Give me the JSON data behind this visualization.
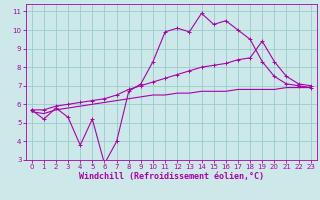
{
  "xlabel": "Windchill (Refroidissement éolien,°C)",
  "bg_color": "#cce8e8",
  "line_color": "#aa00aa",
  "grid_color": "#99cccc",
  "xlim": [
    -0.5,
    23.5
  ],
  "ylim": [
    3,
    11.4
  ],
  "xticks": [
    0,
    1,
    2,
    3,
    4,
    5,
    6,
    7,
    8,
    9,
    10,
    11,
    12,
    13,
    14,
    15,
    16,
    17,
    18,
    19,
    20,
    21,
    22,
    23
  ],
  "yticks": [
    3,
    4,
    5,
    6,
    7,
    8,
    9,
    10,
    11
  ],
  "line1_x": [
    0,
    1,
    2,
    3,
    4,
    5,
    6,
    7,
    8,
    9,
    10,
    11,
    12,
    13,
    14,
    15,
    16,
    17,
    18,
    19,
    20,
    21,
    22,
    23
  ],
  "line1_y": [
    5.7,
    5.2,
    5.8,
    5.3,
    3.8,
    5.2,
    2.8,
    4.0,
    6.7,
    7.1,
    8.3,
    9.9,
    10.1,
    9.9,
    10.9,
    10.3,
    10.5,
    10.0,
    9.5,
    8.3,
    7.5,
    7.1,
    7.0,
    6.9
  ],
  "line2_x": [
    0,
    1,
    2,
    3,
    4,
    5,
    6,
    7,
    8,
    9,
    10,
    11,
    12,
    13,
    14,
    15,
    16,
    17,
    18,
    19,
    20,
    21,
    22,
    23
  ],
  "line2_y": [
    5.7,
    5.7,
    5.9,
    6.0,
    6.1,
    6.2,
    6.3,
    6.5,
    6.8,
    7.0,
    7.2,
    7.4,
    7.6,
    7.8,
    8.0,
    8.1,
    8.2,
    8.4,
    8.5,
    9.4,
    8.3,
    7.5,
    7.1,
    7.0
  ],
  "line3_x": [
    0,
    1,
    2,
    3,
    4,
    5,
    6,
    7,
    8,
    9,
    10,
    11,
    12,
    13,
    14,
    15,
    16,
    17,
    18,
    19,
    20,
    21,
    22,
    23
  ],
  "line3_y": [
    5.6,
    5.5,
    5.7,
    5.8,
    5.9,
    6.0,
    6.1,
    6.2,
    6.3,
    6.4,
    6.5,
    6.5,
    6.6,
    6.6,
    6.7,
    6.7,
    6.7,
    6.8,
    6.8,
    6.8,
    6.8,
    6.9,
    6.9,
    6.9
  ],
  "tick_fontsize": 5.0,
  "label_fontsize": 6.0
}
